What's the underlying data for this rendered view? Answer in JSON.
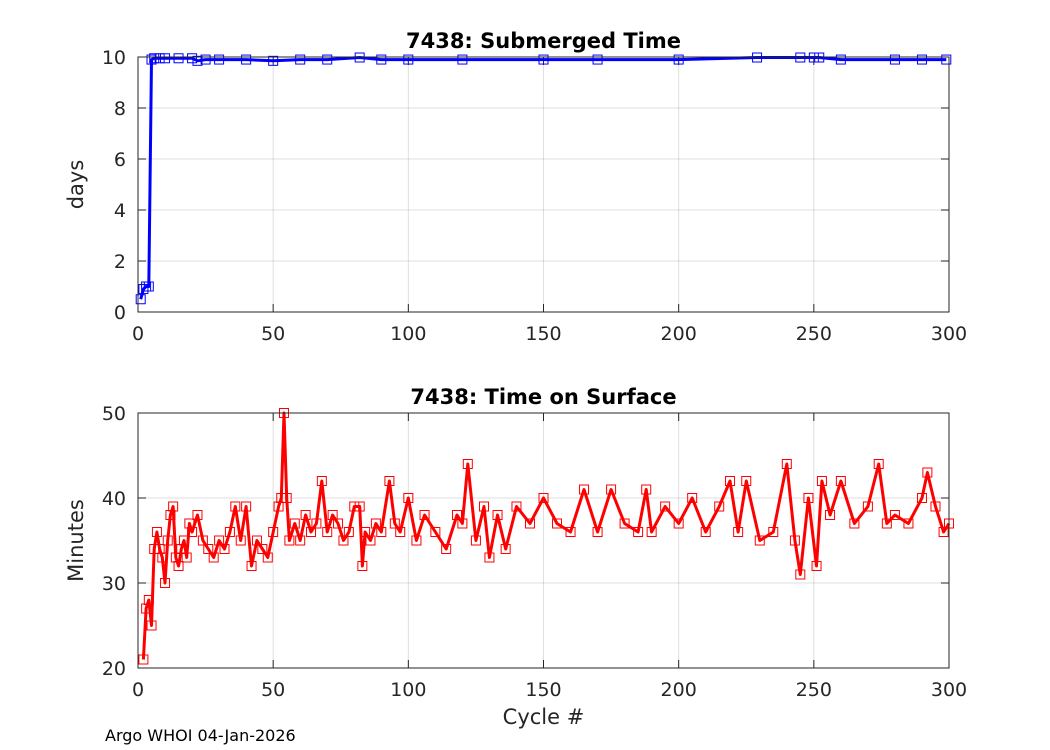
{
  "footer_text": "Argo WHOI 04-Jan-2026",
  "chart_data": [
    {
      "type": "line",
      "title": "7438: Submerged Time",
      "xlabel": "",
      "ylabel": "days",
      "xlim": [
        0,
        300
      ],
      "ylim": [
        0,
        10
      ],
      "xticks": [
        0,
        50,
        100,
        150,
        200,
        250,
        300
      ],
      "yticks": [
        0,
        2,
        4,
        6,
        8,
        10
      ],
      "color": "#0000ff",
      "marker": "square",
      "series": [
        {
          "name": "Submerged Time",
          "x": [
            1,
            2,
            3,
            4,
            5,
            6,
            8,
            10,
            15,
            20,
            22,
            25,
            30,
            40,
            50,
            60,
            70,
            82,
            90,
            100,
            120,
            150,
            170,
            200,
            229,
            245,
            250,
            252,
            260,
            280,
            290,
            299
          ],
          "values": [
            0.5,
            0.9,
            1.0,
            1.0,
            9.9,
            9.95,
            9.95,
            9.95,
            9.95,
            9.95,
            9.85,
            9.9,
            9.9,
            9.9,
            9.85,
            9.9,
            9.9,
            9.98,
            9.9,
            9.9,
            9.9,
            9.9,
            9.9,
            9.9,
            9.98,
            9.98,
            9.98,
            9.98,
            9.9,
            9.9,
            9.9,
            9.9
          ]
        }
      ]
    },
    {
      "type": "line",
      "title": "7438: Time on Surface",
      "xlabel": "Cycle #",
      "ylabel": "Minutes",
      "xlim": [
        0,
        300
      ],
      "ylim": [
        20,
        50
      ],
      "xticks": [
        0,
        50,
        100,
        150,
        200,
        250,
        300
      ],
      "yticks": [
        20,
        30,
        40,
        50
      ],
      "color": "#ff0000",
      "marker": "square",
      "series": [
        {
          "name": "Time on Surface",
          "x": [
            2,
            3,
            4,
            5,
            6,
            7,
            8,
            9,
            10,
            11,
            12,
            13,
            14,
            15,
            16,
            17,
            18,
            19,
            20,
            22,
            24,
            26,
            28,
            30,
            32,
            34,
            36,
            38,
            40,
            42,
            44,
            46,
            48,
            50,
            52,
            53,
            54,
            55,
            56,
            58,
            60,
            62,
            64,
            66,
            68,
            70,
            72,
            74,
            76,
            78,
            80,
            82,
            83,
            84,
            86,
            88,
            90,
            93,
            95,
            97,
            100,
            103,
            106,
            110,
            114,
            118,
            120,
            122,
            125,
            128,
            130,
            133,
            136,
            140,
            145,
            150,
            155,
            160,
            165,
            170,
            175,
            180,
            185,
            188,
            190,
            195,
            200,
            205,
            210,
            215,
            219,
            222,
            225,
            230,
            235,
            240,
            243,
            245,
            248,
            251,
            253,
            256,
            260,
            265,
            270,
            274,
            277,
            280,
            285,
            290,
            292,
            295,
            298,
            300
          ],
          "values": [
            21,
            27,
            28,
            25,
            34,
            36,
            34,
            33,
            30,
            35,
            38,
            39,
            33,
            32,
            34,
            35,
            33,
            37,
            36,
            38,
            35,
            34,
            33,
            35,
            34,
            36,
            39,
            35,
            39,
            32,
            35,
            34,
            33,
            36,
            39,
            40,
            50,
            40,
            35,
            37,
            35,
            38,
            36,
            37,
            42,
            36,
            38,
            37,
            35,
            36,
            39,
            39,
            32,
            36,
            35,
            37,
            36,
            42,
            37,
            36,
            40,
            35,
            38,
            36,
            34,
            38,
            37,
            44,
            35,
            39,
            33,
            38,
            34,
            39,
            37,
            40,
            37,
            36,
            41,
            36,
            41,
            37,
            36,
            41,
            36,
            39,
            37,
            40,
            36,
            39,
            42,
            36,
            42,
            35,
            36,
            44,
            35,
            31,
            40,
            32,
            42,
            38,
            42,
            37,
            39,
            44,
            37,
            38,
            37,
            40,
            43,
            39,
            36,
            37
          ]
        }
      ]
    }
  ]
}
